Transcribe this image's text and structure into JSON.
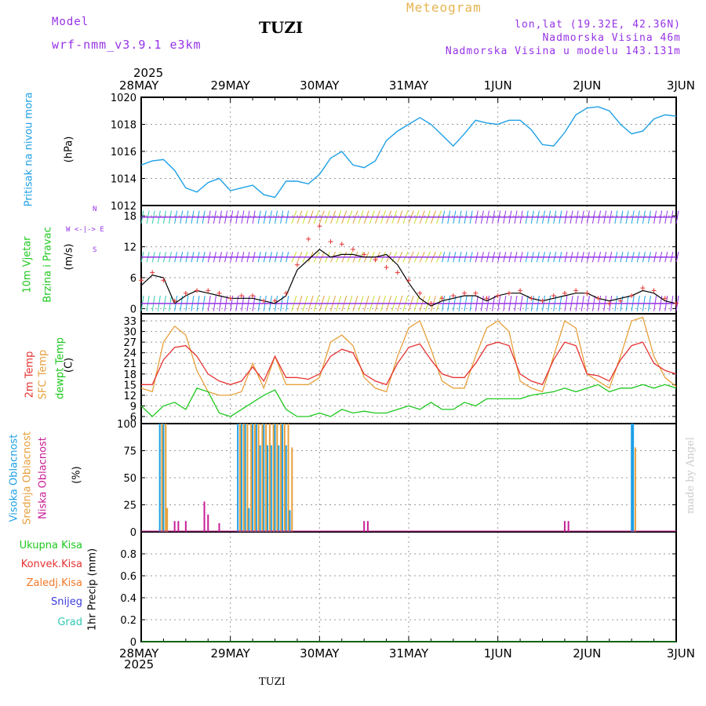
{
  "header": {
    "model_label": "Model",
    "model_name": "wrf-nmm_v3.9.1 e3km",
    "title": "TUZI",
    "meteogram": "Meteogram",
    "coords": "lon,lat (19.32E, 42.36N)",
    "elevation": "Nadmorska Visina 46m",
    "model_elevation": "Nadmorska Visina u modelu 143.131m",
    "footer_name": "TUZI",
    "signature": "made by Angel",
    "year_top": "2025",
    "year_bottom": "2025"
  },
  "colors": {
    "pressure": "#1ea0e6",
    "temp2m": "#e63232",
    "sfc": "#e6a03c",
    "dew": "#1ec81e",
    "high_cloud": "#1ea0e6",
    "mid_cloud": "#e6a03c",
    "low_cloud": "#c81e96",
    "grid": "#999999",
    "wind_purple": "#9632e6",
    "gust_red": "#e63232"
  },
  "chart_data": [
    {
      "id": "pressure",
      "type": "line",
      "title": "Pritisak na nivou mora",
      "ylabel": "(hPa)",
      "ylim": [
        1012,
        1020
      ],
      "yticks": [
        "1012",
        "1014",
        "1016",
        "1018",
        "1020"
      ],
      "xlabels": [
        "28MAY",
        "29MAY",
        "30MAY",
        "31MAY",
        "1JUN",
        "2JUN",
        "3JUN"
      ],
      "series": [
        {
          "name": "Pritisak",
          "x": [
            0,
            3,
            6,
            9,
            12,
            15,
            18,
            21,
            24,
            27,
            30,
            33,
            36,
            39,
            42,
            45,
            48,
            51,
            54,
            57,
            60,
            63,
            66,
            69,
            72,
            75,
            78,
            81,
            84,
            87,
            90,
            93,
            96,
            99,
            102,
            105,
            108,
            111,
            114,
            117,
            120,
            123,
            126,
            129,
            132,
            135,
            138,
            141,
            144
          ],
          "values": [
            1015.0,
            1015.3,
            1015.4,
            1014.6,
            1013.3,
            1013.0,
            1013.7,
            1014.0,
            1013.1,
            1013.3,
            1013.5,
            1012.8,
            1012.6,
            1013.8,
            1013.8,
            1013.6,
            1014.3,
            1015.5,
            1016.0,
            1015.0,
            1014.8,
            1015.3,
            1016.8,
            1017.5,
            1018.0,
            1018.5,
            1018.0,
            1017.2,
            1016.4,
            1017.3,
            1018.3,
            1018.1,
            1018.0,
            1018.3,
            1018.3,
            1017.6,
            1016.5,
            1016.4,
            1017.4,
            1018.7,
            1019.2,
            1019.3,
            1019.0,
            1018.0,
            1017.3,
            1017.5,
            1018.4,
            1018.7,
            1018.6
          ]
        }
      ]
    },
    {
      "id": "wind",
      "type": "line",
      "title": "10m Vjetar Brzina i Pravac",
      "ylabel": "(m/s)",
      "compass": "N W E S",
      "ylim": [
        -1,
        20
      ],
      "yticks": [
        "0",
        "6",
        "12",
        "18"
      ],
      "series": [
        {
          "name": "Brzina",
          "x": [
            0,
            3,
            6,
            9,
            12,
            15,
            18,
            21,
            24,
            27,
            30,
            33,
            36,
            39,
            42,
            45,
            48,
            51,
            54,
            57,
            60,
            63,
            66,
            69,
            72,
            75,
            78,
            81,
            84,
            87,
            90,
            93,
            96,
            99,
            102,
            105,
            108,
            111,
            114,
            117,
            120,
            123,
            126,
            129,
            132,
            135,
            138,
            141,
            144
          ],
          "values": [
            4.5,
            6.5,
            6.0,
            1.0,
            2.5,
            3.5,
            3.0,
            2.5,
            2.0,
            2.0,
            2.0,
            1.5,
            1.0,
            2.5,
            7.5,
            9.5,
            11.5,
            10.0,
            10.5,
            10.5,
            10.0,
            10.0,
            10.5,
            8.5,
            5.0,
            2.0,
            0.5,
            1.5,
            2.0,
            2.5,
            2.5,
            1.5,
            2.5,
            3.0,
            3.0,
            2.0,
            1.5,
            2.0,
            2.5,
            3.0,
            3.0,
            2.0,
            1.5,
            2.0,
            2.5,
            3.5,
            3.0,
            1.5,
            1.0
          ]
        },
        {
          "name": "Udari",
          "x": [
            0,
            3,
            6,
            9,
            12,
            15,
            18,
            21,
            24,
            27,
            30,
            33,
            36,
            39,
            42,
            45,
            48,
            51,
            54,
            57,
            60,
            63,
            66,
            69,
            72,
            75,
            78,
            81,
            84,
            87,
            90,
            93,
            96,
            99,
            102,
            105,
            108,
            111,
            114,
            117,
            120,
            123,
            126,
            129,
            132,
            135,
            138,
            141,
            144
          ],
          "values": [
            5.5,
            7.0,
            5.5,
            1.5,
            3.0,
            3.5,
            3.5,
            3.0,
            2.0,
            2.5,
            2.5,
            1.5,
            1.5,
            3.0,
            8.5,
            13.5,
            16.0,
            13.0,
            12.5,
            11.5,
            10.5,
            9.5,
            8.0,
            7.0,
            5.5,
            3.0,
            1.0,
            2.0,
            2.5,
            3.0,
            3.0,
            2.0,
            2.5,
            3.0,
            3.5,
            2.0,
            1.5,
            2.5,
            3.0,
            3.5,
            3.0,
            2.0,
            1.0,
            1.5,
            2.5,
            4.0,
            3.5,
            2.0,
            1.0
          ]
        }
      ]
    },
    {
      "id": "temperature",
      "type": "line",
      "title": "2m Temp / SFC Temp / dewpt Temp",
      "ylabel": "(C)",
      "ylim": [
        4,
        35
      ],
      "yticks": [
        "6",
        "9",
        "12",
        "15",
        "18",
        "21",
        "24",
        "27",
        "30",
        "33"
      ],
      "series": [
        {
          "name": "2m Temp",
          "x": [
            0,
            3,
            6,
            9,
            12,
            15,
            18,
            21,
            24,
            27,
            30,
            33,
            36,
            39,
            42,
            45,
            48,
            51,
            54,
            57,
            60,
            63,
            66,
            69,
            72,
            75,
            78,
            81,
            84,
            87,
            90,
            93,
            96,
            99,
            102,
            105,
            108,
            111,
            114,
            117,
            120,
            123,
            126,
            129,
            132,
            135,
            138,
            141,
            144
          ],
          "values": [
            15,
            15,
            22,
            25.5,
            26,
            23,
            18,
            16,
            15,
            16,
            20,
            16,
            23,
            17,
            17,
            16.5,
            18,
            23,
            25,
            24,
            18,
            16,
            15,
            21,
            25.5,
            26.5,
            22,
            18,
            17,
            17,
            21,
            26,
            27,
            26,
            18,
            16,
            15,
            22,
            27,
            26,
            18,
            17.5,
            16,
            22,
            26,
            27,
            21,
            19,
            18
          ]
        },
        {
          "name": "SFC Temp",
          "x": [
            0,
            3,
            6,
            9,
            12,
            15,
            18,
            21,
            24,
            27,
            30,
            33,
            36,
            39,
            42,
            45,
            48,
            51,
            54,
            57,
            60,
            63,
            66,
            69,
            72,
            75,
            78,
            81,
            84,
            87,
            90,
            93,
            96,
            99,
            102,
            105,
            108,
            111,
            114,
            117,
            120,
            123,
            126,
            129,
            132,
            135,
            138,
            141,
            144
          ],
          "values": [
            14,
            13,
            27,
            31.5,
            29,
            19,
            13,
            12,
            12,
            13,
            21,
            14,
            23,
            15,
            15,
            15,
            17,
            27,
            29,
            26,
            17,
            14,
            13,
            23,
            31,
            33,
            25,
            16,
            14,
            14,
            23,
            31,
            33,
            30,
            16,
            14,
            13,
            23,
            33,
            31,
            18,
            16,
            14,
            23,
            33,
            34,
            23,
            17,
            14.5
          ]
        },
        {
          "name": "dewpt Temp",
          "x": [
            0,
            3,
            6,
            9,
            12,
            15,
            18,
            21,
            24,
            27,
            30,
            33,
            36,
            39,
            42,
            45,
            48,
            51,
            54,
            57,
            60,
            63,
            66,
            69,
            72,
            75,
            78,
            81,
            84,
            87,
            90,
            93,
            96,
            99,
            102,
            105,
            108,
            111,
            114,
            117,
            120,
            123,
            126,
            129,
            132,
            135,
            138,
            141,
            144
          ],
          "values": [
            9,
            6,
            9,
            10,
            8,
            14,
            13,
            7,
            6,
            8,
            10,
            12,
            13.5,
            8,
            6,
            6,
            7,
            6,
            8,
            7,
            7.5,
            7,
            7,
            8,
            9,
            8,
            10,
            8,
            8,
            10,
            9,
            11,
            11,
            11,
            11,
            12,
            12.5,
            13,
            14,
            13,
            14,
            15,
            13,
            14,
            14,
            15,
            14,
            15,
            14
          ]
        }
      ]
    },
    {
      "id": "clouds",
      "type": "bar",
      "title": "Visoka / Srednja / Niska Oblacnost",
      "ylabel": "(%)",
      "ylim": [
        0,
        100
      ],
      "yticks": [
        "0",
        "25",
        "50",
        "75",
        "100"
      ],
      "series": [
        {
          "name": "Visoka",
          "x": [
            5.0,
            6.0,
            26.0,
            27.0,
            28.0,
            29.0,
            30.0,
            31.0,
            32.0,
            33.0,
            34.0,
            35.0,
            36.0,
            37.0,
            38.0,
            39.0,
            40.0,
            132.0
          ],
          "values": [
            100,
            100,
            100,
            100,
            100,
            22,
            100,
            100,
            80,
            100,
            80,
            80,
            100,
            80,
            100,
            80,
            20,
            100
          ]
        },
        {
          "name": "Srednja",
          "x": [
            5.6,
            6.6,
            7.0,
            26.6,
            27.6,
            28.6,
            29.6,
            30.6,
            31.6,
            32.6,
            33.6,
            34.6,
            35.6,
            36.6,
            37.6,
            38.6,
            39.6,
            40.6,
            133.0
          ],
          "values": [
            100,
            100,
            22,
            100,
            100,
            100,
            100,
            100,
            100,
            100,
            100,
            100,
            100,
            100,
            100,
            100,
            100,
            78,
            78
          ]
        },
        {
          "name": "Niska",
          "x": [
            9,
            10,
            12,
            17,
            18,
            21,
            60,
            61,
            114,
            115
          ],
          "values": [
            10,
            10,
            10,
            28,
            16,
            8,
            10,
            10,
            10,
            10
          ]
        }
      ]
    },
    {
      "id": "precip",
      "type": "line",
      "title": "1hr Precip",
      "ylabel": "1hr Precip (mm)",
      "ylim": [
        0,
        1
      ],
      "yticks": [
        "0",
        "0.2",
        "0.4",
        "0.6",
        "0.8"
      ],
      "legend": [
        "Ukupna Kisa",
        "Konvek.Kisa",
        "Zaledj.Kisa",
        "Snijeg",
        "Grad"
      ],
      "series": [
        {
          "name": "Ukupna Kisa",
          "x": [
            0,
            144
          ],
          "values": [
            0,
            0
          ]
        }
      ]
    }
  ],
  "labels": {
    "pressure_name": "Pritisak na nivou mora",
    "pressure_unit": "(hPa)",
    "wind_l1": "10m Vjetar",
    "wind_l2": "Brzina i Pravac",
    "wind_unit": "(m/s)",
    "temp_2m": "2m Temp",
    "temp_sfc": "SFC Temp",
    "temp_dew": "dewpt Temp",
    "temp_unit": "(C)",
    "cloud_high": "Visoka Oblacnost",
    "cloud_mid": "Srednja Oblacnost",
    "cloud_low": "Niska Oblacnost",
    "cloud_unit": "(%)",
    "precip_unit": "1hr Precip (mm)",
    "compass_n": "N",
    "compass_s": "S",
    "compass_ew": "W <-|-> E"
  }
}
